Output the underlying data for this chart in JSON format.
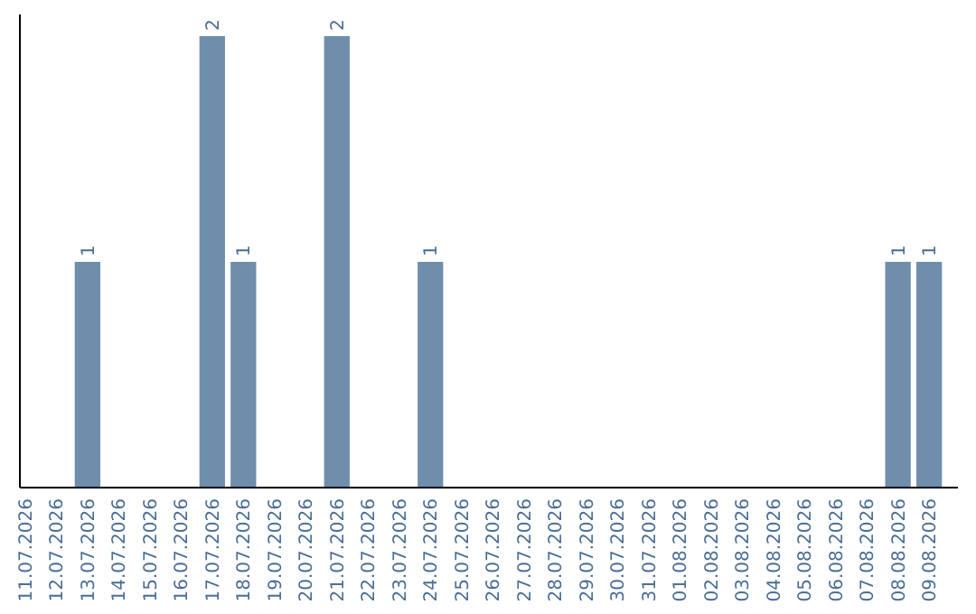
{
  "chart_data": {
    "type": "bar",
    "categories": [
      "11.07.2026",
      "12.07.2026",
      "13.07.2026",
      "14.07.2026",
      "15.07.2026",
      "16.07.2026",
      "17.07.2026",
      "18.07.2026",
      "19.07.2026",
      "20.07.2026",
      "21.07.2026",
      "22.07.2026",
      "23.07.2026",
      "24.07.2026",
      "25.07.2026",
      "26.07.2026",
      "27.07.2026",
      "28.07.2026",
      "29.07.2026",
      "30.07.2026",
      "31.07.2026",
      "01.08.2026",
      "02.08.2026",
      "03.08.2026",
      "04.08.2026",
      "05.08.2026",
      "06.08.2026",
      "07.08.2026",
      "08.08.2026",
      "09.08.2026"
    ],
    "values": [
      0,
      0,
      1,
      0,
      0,
      0,
      2,
      1,
      0,
      0,
      2,
      0,
      0,
      1,
      0,
      0,
      0,
      0,
      0,
      0,
      0,
      0,
      0,
      0,
      0,
      0,
      0,
      0,
      1,
      1
    ],
    "value_labels": [
      null,
      null,
      "1",
      null,
      null,
      null,
      "2",
      "1",
      null,
      null,
      "2",
      null,
      null,
      "1",
      null,
      null,
      null,
      null,
      null,
      null,
      null,
      null,
      null,
      null,
      null,
      null,
      null,
      null,
      "1",
      "1"
    ],
    "color": "#6e8eac",
    "ylim": [
      0,
      2
    ]
  }
}
